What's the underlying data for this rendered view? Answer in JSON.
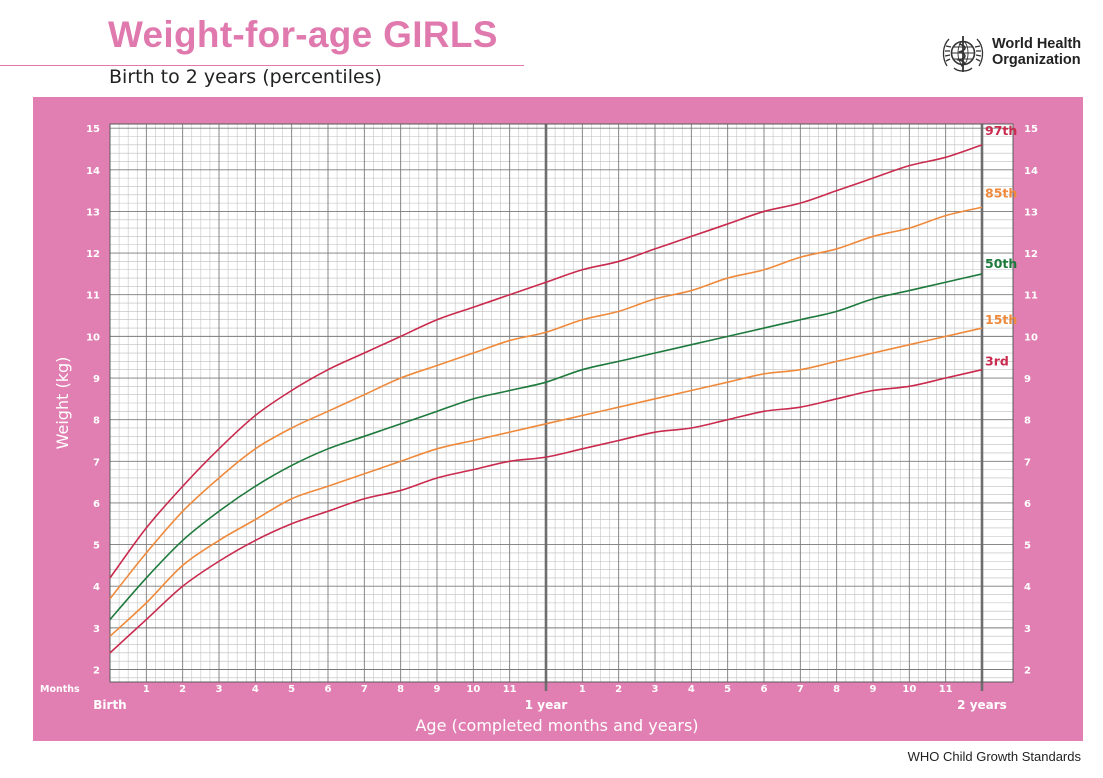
{
  "title": "Weight-for-age GIRLS",
  "subtitle": "Birth to 2 years (percentiles)",
  "organization": {
    "line1": "World Health",
    "line2": "Organization"
  },
  "footer": "WHO Child Growth Standards",
  "colors": {
    "frame": "#e27fb2",
    "grid": "#7f7f7f",
    "p3": "#c92a4d",
    "p15": "#ef8a3c",
    "p50": "#1e7a3c",
    "p85": "#ef8a3c",
    "p97": "#c92a4d"
  },
  "chart_data": {
    "type": "line",
    "xlabel": "Age (completed months and years)",
    "ylabel": "Weight (kg)",
    "x_unit_label": "Months",
    "xlim": [
      0,
      24
    ],
    "ylim": [
      1.7,
      15.1
    ],
    "grid": true,
    "x_tick_labels": [
      "Birth",
      "1",
      "2",
      "3",
      "4",
      "5",
      "6",
      "7",
      "8",
      "9",
      "10",
      "11",
      "1 year",
      "1",
      "2",
      "3",
      "4",
      "5",
      "6",
      "7",
      "8",
      "9",
      "10",
      "11",
      "2 years"
    ],
    "y_ticks": [
      2,
      3,
      4,
      5,
      6,
      7,
      8,
      9,
      10,
      11,
      12,
      13,
      14,
      15
    ],
    "x": [
      0,
      1,
      2,
      3,
      4,
      5,
      6,
      7,
      8,
      9,
      10,
      11,
      12,
      13,
      14,
      15,
      16,
      17,
      18,
      19,
      20,
      21,
      22,
      23,
      24
    ],
    "series": [
      {
        "name": "3rd",
        "key": "p3",
        "values": [
          2.4,
          3.2,
          4.0,
          4.6,
          5.1,
          5.5,
          5.8,
          6.1,
          6.3,
          6.6,
          6.8,
          7.0,
          7.1,
          7.3,
          7.5,
          7.7,
          7.8,
          8.0,
          8.2,
          8.3,
          8.5,
          8.7,
          8.8,
          9.0,
          9.2
        ]
      },
      {
        "name": "15th",
        "key": "p15",
        "values": [
          2.8,
          3.6,
          4.5,
          5.1,
          5.6,
          6.1,
          6.4,
          6.7,
          7.0,
          7.3,
          7.5,
          7.7,
          7.9,
          8.1,
          8.3,
          8.5,
          8.7,
          8.9,
          9.1,
          9.2,
          9.4,
          9.6,
          9.8,
          10.0,
          10.2
        ]
      },
      {
        "name": "50th",
        "key": "p50",
        "values": [
          3.2,
          4.2,
          5.1,
          5.8,
          6.4,
          6.9,
          7.3,
          7.6,
          7.9,
          8.2,
          8.5,
          8.7,
          8.9,
          9.2,
          9.4,
          9.6,
          9.8,
          10.0,
          10.2,
          10.4,
          10.6,
          10.9,
          11.1,
          11.3,
          11.5
        ]
      },
      {
        "name": "85th",
        "key": "p85",
        "values": [
          3.7,
          4.8,
          5.8,
          6.6,
          7.3,
          7.8,
          8.2,
          8.6,
          9.0,
          9.3,
          9.6,
          9.9,
          10.1,
          10.4,
          10.6,
          10.9,
          11.1,
          11.4,
          11.6,
          11.9,
          12.1,
          12.4,
          12.6,
          12.9,
          13.1
        ]
      },
      {
        "name": "97th",
        "key": "p97",
        "values": [
          4.2,
          5.4,
          6.4,
          7.3,
          8.1,
          8.7,
          9.2,
          9.6,
          10.0,
          10.4,
          10.7,
          11.0,
          11.3,
          11.6,
          11.8,
          12.1,
          12.4,
          12.7,
          13.0,
          13.2,
          13.5,
          13.8,
          14.1,
          14.3,
          14.6
        ]
      }
    ]
  }
}
